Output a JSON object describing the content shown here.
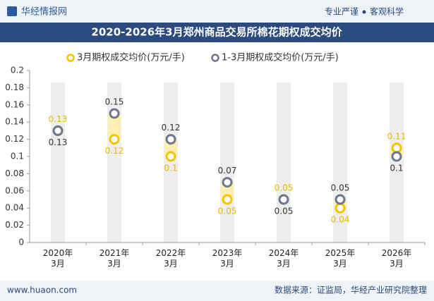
{
  "header": {
    "logo": "华经情报网",
    "slogan_left": "专业严谨",
    "slogan_right": "客观科学"
  },
  "footer": {
    "website": "www.huaon.com",
    "source": "数据来源：证监局，华经产业研究院整理"
  },
  "chart_data": {
    "type": "dot",
    "title": "2020-2026年3月郑州商品交易所棉花期权成交均价",
    "categories": [
      "2020年\n3月",
      "2021年\n3月",
      "2022年\n3月",
      "2023年\n3月",
      "2024年\n3月",
      "2025年\n3月",
      "2026年\n3月"
    ],
    "series": [
      {
        "name": "3月期权成交均价(万元/手)",
        "color": "#f5c400",
        "label_color": "#e8b800",
        "values": [
          0.13,
          0.12,
          0.1,
          0.05,
          0.05,
          0.04,
          0.11
        ]
      },
      {
        "name": "1-3月期权成交均价(万元/手)",
        "color": "#6b7892",
        "label_color": "#333333",
        "values": [
          0.13,
          0.15,
          0.12,
          0.07,
          0.05,
          0.05,
          0.1
        ]
      }
    ],
    "ylim": [
      0,
      0.2
    ],
    "yticks": [
      0,
      0.02,
      0.04,
      0.06,
      0.08,
      0.1,
      0.12,
      0.14,
      0.16,
      0.18,
      0.2
    ]
  }
}
